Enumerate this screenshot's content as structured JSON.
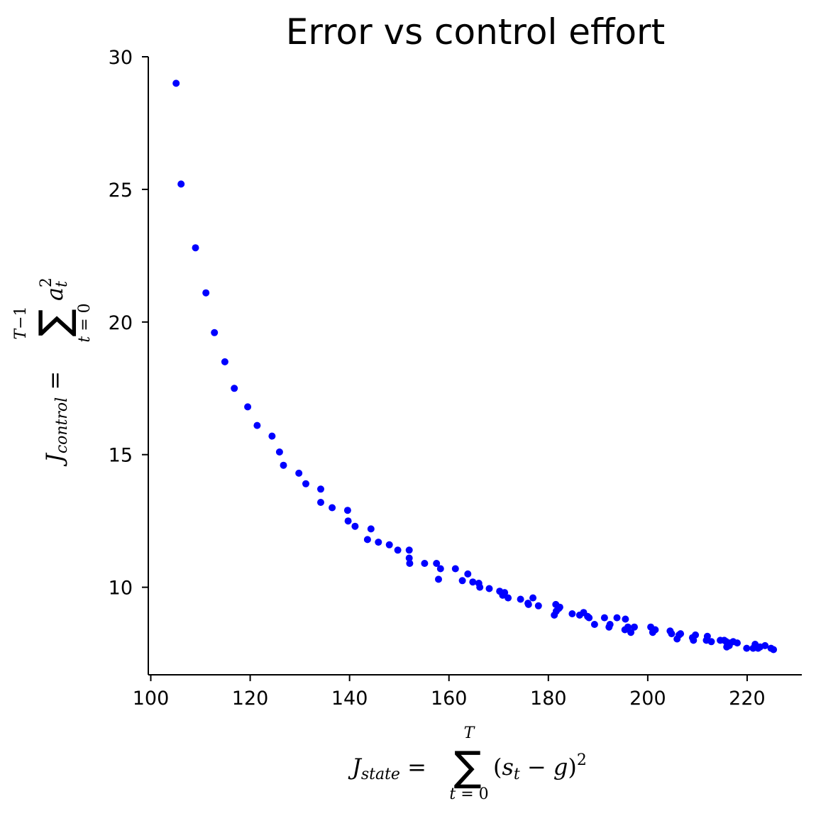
{
  "chart_data": {
    "type": "scatter",
    "title": "Error vs control effort",
    "xlabel": "J_state = Σ_{t=0}^{T} (s_t − g)^2",
    "ylabel": "J_control = Σ_{t=0}^{T−1} a_t^2",
    "xlim": [
      99.5,
      231
    ],
    "ylim": [
      6.7,
      30
    ],
    "xticks": [
      "100",
      "120",
      "140",
      "160",
      "180",
      "200",
      "220"
    ],
    "yticks": [
      "10",
      "15",
      "20",
      "25",
      "30"
    ],
    "grid": false,
    "color": "#0000ff",
    "points": [
      [
        105.1,
        29.0
      ],
      [
        106.1,
        25.2
      ],
      [
        109.0,
        22.8
      ],
      [
        111.1,
        21.1
      ],
      [
        112.8,
        19.6
      ],
      [
        114.9,
        18.5
      ],
      [
        116.8,
        17.5
      ],
      [
        119.5,
        16.8
      ],
      [
        121.4,
        16.1
      ],
      [
        124.4,
        15.7
      ],
      [
        125.9,
        15.1
      ],
      [
        126.7,
        14.6
      ],
      [
        129.8,
        14.3
      ],
      [
        131.2,
        13.9
      ],
      [
        134.2,
        13.7
      ],
      [
        134.2,
        13.2
      ],
      [
        136.5,
        13.0
      ],
      [
        139.6,
        12.9
      ],
      [
        139.7,
        12.5
      ],
      [
        141.1,
        12.3
      ],
      [
        143.6,
        11.8
      ],
      [
        144.3,
        12.2
      ],
      [
        145.8,
        11.7
      ],
      [
        148.0,
        11.6
      ],
      [
        149.7,
        11.4
      ],
      [
        152.0,
        11.4
      ],
      [
        152.0,
        11.1
      ],
      [
        152.1,
        10.9
      ],
      [
        155.1,
        10.9
      ],
      [
        157.5,
        10.9
      ],
      [
        157.9,
        10.3
      ],
      [
        158.3,
        10.7
      ],
      [
        161.3,
        10.7
      ],
      [
        162.7,
        10.25
      ],
      [
        163.8,
        10.5
      ],
      [
        164.8,
        10.2
      ],
      [
        166.0,
        10.15
      ],
      [
        166.2,
        10.0
      ],
      [
        168.1,
        9.95
      ],
      [
        170.2,
        9.85
      ],
      [
        170.8,
        9.7
      ],
      [
        171.2,
        9.8
      ],
      [
        171.9,
        9.6
      ],
      [
        174.4,
        9.55
      ],
      [
        175.9,
        9.4
      ],
      [
        176.0,
        9.35
      ],
      [
        176.9,
        9.6
      ],
      [
        178.0,
        9.3
      ],
      [
        181.2,
        8.95
      ],
      [
        181.5,
        9.35
      ],
      [
        181.6,
        9.1
      ],
      [
        182.1,
        9.2
      ],
      [
        182.3,
        9.25
      ],
      [
        184.8,
        9.0
      ],
      [
        186.3,
        8.95
      ],
      [
        187.1,
        9.05
      ],
      [
        187.9,
        8.9
      ],
      [
        188.2,
        8.85
      ],
      [
        189.3,
        8.6
      ],
      [
        191.3,
        8.85
      ],
      [
        192.2,
        8.5
      ],
      [
        192.4,
        8.6
      ],
      [
        193.8,
        8.85
      ],
      [
        195.4,
        8.4
      ],
      [
        195.5,
        8.8
      ],
      [
        196.0,
        8.5
      ],
      [
        196.6,
        8.3
      ],
      [
        197.3,
        8.5
      ],
      [
        200.6,
        8.5
      ],
      [
        201.0,
        8.3
      ],
      [
        201.5,
        8.4
      ],
      [
        204.5,
        8.35
      ],
      [
        204.8,
        8.25
      ],
      [
        205.9,
        8.05
      ],
      [
        206.3,
        8.2
      ],
      [
        206.6,
        8.25
      ],
      [
        209.0,
        8.1
      ],
      [
        209.2,
        8.0
      ],
      [
        209.6,
        8.2
      ],
      [
        211.8,
        8.0
      ],
      [
        212.0,
        8.15
      ],
      [
        212.8,
        7.95
      ],
      [
        214.6,
        8.0
      ],
      [
        215.4,
        8.0
      ],
      [
        215.8,
        7.95
      ],
      [
        215.9,
        7.75
      ],
      [
        216.4,
        7.8
      ],
      [
        216.6,
        7.9
      ],
      [
        217.2,
        7.95
      ],
      [
        218.0,
        7.9
      ],
      [
        219.9,
        7.7
      ],
      [
        221.2,
        7.7
      ],
      [
        221.6,
        7.85
      ],
      [
        222.2,
        7.7
      ],
      [
        222.6,
        7.75
      ],
      [
        223.6,
        7.8
      ],
      [
        224.8,
        7.7
      ],
      [
        225.3,
        7.65
      ]
    ]
  }
}
